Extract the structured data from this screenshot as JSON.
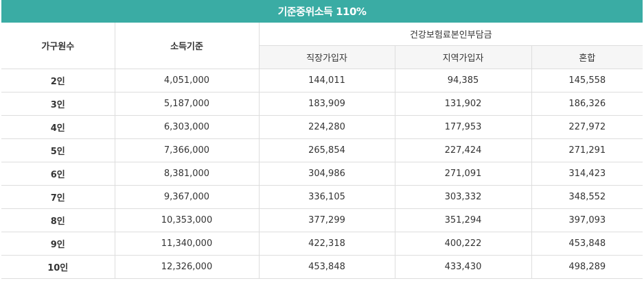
{
  "title": "기준중위소득 110%",
  "headers": {
    "household": "가구원수",
    "income": "소득기준",
    "premium_group": "건강보험료본인부담금",
    "workplace": "직장가입자",
    "regional": "지역가입자",
    "mixed": "혼합"
  },
  "rows": [
    {
      "household": "2인",
      "income": "4,051,000",
      "workplace": "144,011",
      "regional": "94,385",
      "mixed": "145,558"
    },
    {
      "household": "3인",
      "income": "5,187,000",
      "workplace": "183,909",
      "regional": "131,902",
      "mixed": "186,326"
    },
    {
      "household": "4인",
      "income": "6,303,000",
      "workplace": "224,280",
      "regional": "177,953",
      "mixed": "227,972"
    },
    {
      "household": "5인",
      "income": "7,366,000",
      "workplace": "265,854",
      "regional": "227,424",
      "mixed": "271,291"
    },
    {
      "household": "6인",
      "income": "8,381,000",
      "workplace": "304,986",
      "regional": "271,091",
      "mixed": "314,423"
    },
    {
      "household": "7인",
      "income": "9,367,000",
      "workplace": "336,105",
      "regional": "303,332",
      "mixed": "348,552"
    },
    {
      "household": "8인",
      "income": "10,353,000",
      "workplace": "377,299",
      "regional": "351,294",
      "mixed": "397,093"
    },
    {
      "household": "9인",
      "income": "11,340,000",
      "workplace": "422,318",
      "regional": "400,222",
      "mixed": "453,848"
    },
    {
      "household": "10인",
      "income": "12,326,000",
      "workplace": "453,848",
      "regional": "433,430",
      "mixed": "498,289"
    }
  ],
  "colors": {
    "title_bg": "#3aaca4",
    "title_text": "#ffffff",
    "subheader_bg": "#f6f6f6",
    "border": "#dddddd"
  }
}
